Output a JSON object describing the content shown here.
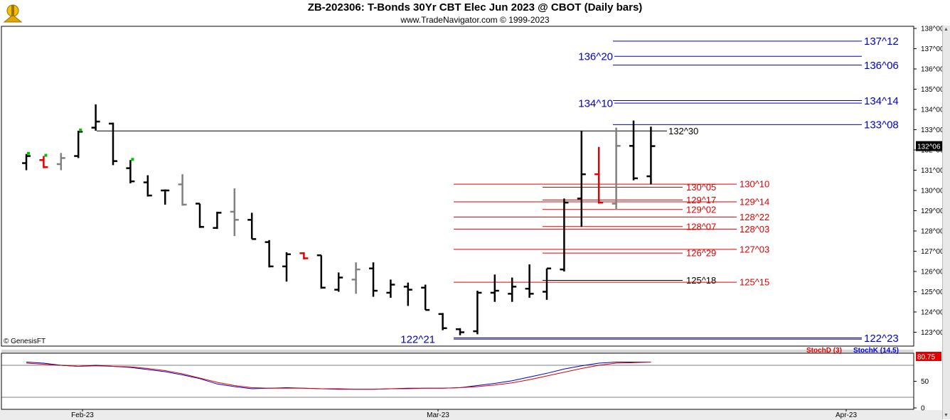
{
  "header": {
    "title": "ZB-202306:  T-Bonds 30Yr CBT Elec Jun 2023 @ CBOT  (Daily bars)",
    "subtitle": "www.TradeNavigator.com © 1999-2023"
  },
  "copyright": "© GenesisFT",
  "indicator": {
    "stochd_label": "StochD (3)",
    "stochk_label": "StochK (14,5)",
    "value_label": "80.75",
    "axis_ticks": [
      "50",
      "0"
    ]
  },
  "colors": {
    "up_bar": "#000000",
    "neutral_bar": "#808080",
    "red_bar": "#e00000",
    "green_tick": "#00c000",
    "blue_level": "#0000cc",
    "red_level": "#e00000",
    "stochd": "#e00000",
    "stochk": "#0000cc"
  },
  "chart_data": {
    "type": "ohlc",
    "y_unit": "32nds (e.g. 132^30 = 132 + 30/32)",
    "ylim": [
      122.7,
      138.0
    ],
    "y_ticks": [
      "123^00",
      "124^00",
      "125^00",
      "126^00",
      "127^00",
      "128^00",
      "129^00",
      "130^00",
      "131^00",
      "132^00",
      "133^00",
      "134^00",
      "135^00",
      "136^00",
      "137^00",
      "138^00"
    ],
    "last_price_label": "132^06",
    "x_labels": [
      "Feb-23",
      "Mar-23",
      "Apr-23"
    ],
    "bars": [
      {
        "date": "Jan-27",
        "o": 131.35,
        "h": 131.8,
        "l": 131.0,
        "c": 131.7,
        "color": "black",
        "dot": "green"
      },
      {
        "date": "Jan-30",
        "o": 131.5,
        "h": 131.7,
        "l": 131.1,
        "c": 131.15,
        "color": "red",
        "dot": "green"
      },
      {
        "date": "Jan-31",
        "o": 131.3,
        "h": 131.85,
        "l": 131.0,
        "c": 131.6,
        "color": "gray"
      },
      {
        "date": "Feb-01",
        "o": 131.7,
        "h": 132.95,
        "l": 131.6,
        "c": 132.9,
        "color": "black",
        "dot": "green"
      },
      {
        "date": "Feb-02",
        "o": 133.1,
        "h": 134.25,
        "l": 132.95,
        "c": 133.4,
        "color": "black"
      },
      {
        "date": "Feb-03",
        "o": 133.3,
        "h": 133.35,
        "l": 131.25,
        "c": 131.45,
        "color": "black"
      },
      {
        "date": "Feb-06",
        "o": 131.1,
        "h": 131.5,
        "l": 130.35,
        "c": 130.45,
        "color": "black",
        "dot": "green"
      },
      {
        "date": "Feb-07",
        "o": 130.4,
        "h": 130.75,
        "l": 129.7,
        "c": 129.75,
        "color": "black"
      },
      {
        "date": "Feb-08",
        "o": 130.0,
        "h": 130.05,
        "l": 129.3,
        "c": 130.0,
        "color": "black"
      },
      {
        "date": "Feb-09",
        "o": 130.3,
        "h": 130.8,
        "l": 129.25,
        "c": 129.3,
        "color": "gray"
      },
      {
        "date": "Feb-10",
        "o": 129.35,
        "h": 129.35,
        "l": 128.15,
        "c": 128.2,
        "color": "black"
      },
      {
        "date": "Feb-13",
        "o": 128.15,
        "h": 128.95,
        "l": 128.1,
        "c": 128.9,
        "color": "black"
      },
      {
        "date": "Feb-14",
        "o": 128.95,
        "h": 130.1,
        "l": 127.75,
        "c": 128.55,
        "color": "gray"
      },
      {
        "date": "Feb-15",
        "o": 128.55,
        "h": 128.9,
        "l": 127.6,
        "c": 127.6,
        "color": "black"
      },
      {
        "date": "Feb-16",
        "o": 127.45,
        "h": 127.55,
        "l": 126.2,
        "c": 126.25,
        "color": "black"
      },
      {
        "date": "Feb-17",
        "o": 126.25,
        "h": 126.95,
        "l": 125.5,
        "c": 126.85,
        "color": "black"
      },
      {
        "date": "Feb-21",
        "o": 126.9,
        "h": 126.95,
        "l": 126.6,
        "c": 126.65,
        "color": "red"
      },
      {
        "date": "Feb-22",
        "o": 126.8,
        "h": 126.8,
        "l": 125.15,
        "c": 125.2,
        "color": "black"
      },
      {
        "date": "Feb-23",
        "o": 125.1,
        "h": 125.95,
        "l": 125.0,
        "c": 125.7,
        "color": "black"
      },
      {
        "date": "Feb-24",
        "o": 125.6,
        "h": 126.45,
        "l": 124.9,
        "c": 126.1,
        "color": "gray"
      },
      {
        "date": "Feb-27",
        "o": 126.15,
        "h": 126.45,
        "l": 124.75,
        "c": 125.05,
        "color": "black"
      },
      {
        "date": "Feb-28",
        "o": 124.95,
        "h": 125.6,
        "l": 124.7,
        "c": 125.35,
        "color": "black"
      },
      {
        "date": "Mar-01",
        "o": 125.25,
        "h": 125.45,
        "l": 124.3,
        "c": 125.1,
        "color": "black"
      },
      {
        "date": "Mar-02",
        "o": 125.2,
        "h": 125.35,
        "l": 124.1,
        "c": 124.1,
        "color": "black"
      },
      {
        "date": "Mar-03",
        "o": 123.9,
        "h": 123.95,
        "l": 123.1,
        "c": 123.2,
        "color": "black"
      },
      {
        "date": "Mar-06",
        "o": 123.15,
        "h": 123.2,
        "l": 122.85,
        "c": 123.0,
        "color": "black"
      },
      {
        "date": "Mar-07",
        "o": 123.05,
        "h": 125.05,
        "l": 122.9,
        "c": 124.95,
        "color": "black"
      },
      {
        "date": "Mar-08",
        "o": 124.95,
        "h": 125.85,
        "l": 124.5,
        "c": 125.05,
        "color": "black"
      },
      {
        "date": "Mar-09",
        "o": 124.9,
        "h": 125.7,
        "l": 124.5,
        "c": 125.25,
        "color": "black"
      },
      {
        "date": "Mar-10",
        "o": 125.15,
        "h": 126.35,
        "l": 124.7,
        "c": 124.9,
        "color": "black"
      },
      {
        "date": "Mar-13",
        "o": 125.0,
        "h": 126.15,
        "l": 124.6,
        "c": 126.15,
        "color": "black"
      },
      {
        "date": "Mar-14",
        "o": 126.1,
        "h": 129.6,
        "l": 126.0,
        "c": 129.4,
        "color": "black"
      },
      {
        "date": "Mar-15",
        "o": 129.6,
        "h": 132.95,
        "l": 128.2,
        "c": 130.8,
        "color": "black"
      },
      {
        "date": "Mar-16",
        "o": 130.8,
        "h": 132.15,
        "l": 129.35,
        "c": 129.4,
        "color": "red"
      },
      {
        "date": "Mar-17",
        "o": 129.35,
        "h": 133.1,
        "l": 129.05,
        "c": 132.2,
        "color": "gray"
      },
      {
        "date": "Mar-20",
        "o": 132.2,
        "h": 133.45,
        "l": 130.5,
        "c": 130.6,
        "color": "black"
      },
      {
        "date": "Mar-21",
        "o": 130.7,
        "h": 133.15,
        "l": 130.3,
        "c": 132.19,
        "color": "black"
      }
    ],
    "levels": [
      {
        "label": "137^12",
        "value": 137.375,
        "color": "blue",
        "side": "right"
      },
      {
        "label": "136^20",
        "value": 136.625,
        "color": "blue",
        "side": "left"
      },
      {
        "label": "136^06",
        "value": 136.1875,
        "color": "blue",
        "side": "right"
      },
      {
        "label": "134^14",
        "value": 134.4375,
        "color": "blue",
        "side": "right"
      },
      {
        "label": "134^10",
        "value": 134.3125,
        "color": "blue",
        "side": "left"
      },
      {
        "label": "133^08",
        "value": 133.25,
        "color": "blue",
        "side": "right"
      },
      {
        "label": "132^30",
        "value": 132.9375,
        "color": "black",
        "side": "mid"
      },
      {
        "label": "130^10",
        "value": 130.3125,
        "color": "red",
        "side": "right2"
      },
      {
        "label": "130^05",
        "value": 130.15625,
        "color": "red",
        "side": "mid"
      },
      {
        "label": "129^17",
        "value": 129.53125,
        "color": "red",
        "side": "mid"
      },
      {
        "label": "129^14",
        "value": 129.4375,
        "color": "red",
        "side": "right2"
      },
      {
        "label": "129^02",
        "value": 129.0625,
        "color": "red",
        "side": "mid"
      },
      {
        "label": "128^22",
        "value": 128.6875,
        "color": "red",
        "side": "right2"
      },
      {
        "label": "128^07",
        "value": 128.21875,
        "color": "red",
        "side": "mid"
      },
      {
        "label": "128^03",
        "value": 128.09375,
        "color": "red",
        "side": "right2"
      },
      {
        "label": "127^03",
        "value": 127.09375,
        "color": "red",
        "side": "right2"
      },
      {
        "label": "126^29",
        "value": 126.90625,
        "color": "red",
        "side": "mid"
      },
      {
        "label": "125^18",
        "value": 125.5625,
        "color": "black",
        "side": "mid"
      },
      {
        "label": "125^15",
        "value": 125.46875,
        "color": "red",
        "side": "right2"
      },
      {
        "label": "122^23",
        "value": 122.71875,
        "color": "blue",
        "side": "right"
      },
      {
        "label": "122^21",
        "value": 122.65625,
        "color": "blue",
        "side": "left"
      }
    ],
    "stoch": {
      "stochk": [
        86,
        84,
        80,
        78,
        80,
        78,
        76,
        72,
        68,
        62,
        55,
        45,
        40,
        36,
        37,
        38,
        37,
        36,
        35,
        35,
        35,
        36,
        37,
        37,
        37,
        38,
        42,
        46,
        51,
        58,
        65,
        73,
        79,
        84,
        86,
        86,
        86
      ],
      "stochd": [
        84,
        82,
        80,
        78,
        79,
        78,
        77,
        74,
        70,
        64,
        56,
        48,
        42,
        38,
        37,
        37,
        37,
        36,
        36,
        35,
        35,
        36,
        36,
        37,
        37,
        38,
        40,
        43,
        47,
        53,
        60,
        67,
        74,
        80,
        84,
        85,
        86
      ]
    }
  }
}
